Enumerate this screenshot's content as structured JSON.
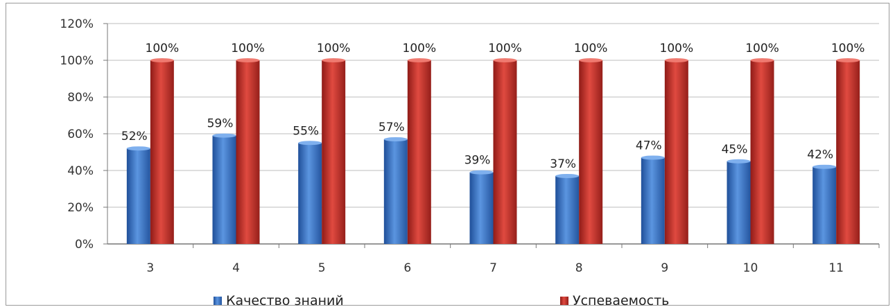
{
  "chart_data": {
    "type": "bar",
    "categories": [
      "3",
      "4",
      "5",
      "6",
      "7",
      "8",
      "9",
      "10",
      "11"
    ],
    "series": [
      {
        "name": "Качество знаний",
        "values": [
          52,
          59,
          55,
          57,
          39,
          37,
          47,
          45,
          42
        ],
        "color": "#3d78c9"
      },
      {
        "name": "Успеваемость",
        "values": [
          100,
          100,
          100,
          100,
          100,
          100,
          100,
          100,
          100
        ],
        "color": "#c8322c"
      }
    ],
    "y_ticks": [
      "0%",
      "20%",
      "40%",
      "60%",
      "80%",
      "100%",
      "120%"
    ],
    "ylim": [
      0,
      120
    ],
    "y_unit": "%",
    "grid": true,
    "legend": "bottom",
    "title": "",
    "xlabel": "",
    "ylabel": ""
  }
}
